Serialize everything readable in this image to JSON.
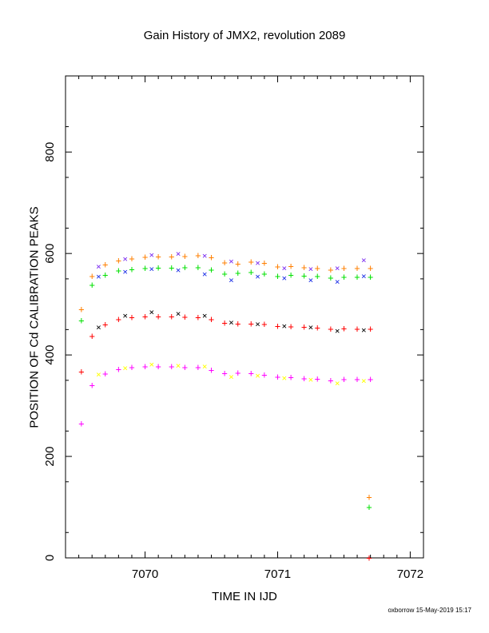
{
  "chart_data": {
    "type": "scatter",
    "title": "Gain History of JMX2, revolution 2089",
    "xlabel": "TIME IN IJD",
    "ylabel": "POSITION OF Cd CALIBRATION PEAKS",
    "xlim": [
      7069.4,
      7072.1
    ],
    "ylim": [
      0,
      950
    ],
    "xticks": [
      7070,
      7071,
      7072
    ],
    "yticks": [
      0,
      200,
      400,
      600,
      800
    ],
    "grid": false,
    "series": [
      {
        "color": "#7b2cf0",
        "marker": "x",
        "x": [
          7069.65,
          7069.85,
          7070.05,
          7070.25,
          7070.45,
          7070.65,
          7070.85,
          7071.05,
          7071.25,
          7071.45,
          7071.65
        ],
        "y": [
          575,
          590,
          598,
          600,
          596,
          585,
          582,
          572,
          570,
          572,
          588
        ]
      },
      {
        "color": "#1a2ee6",
        "marker": "x",
        "x": [
          7069.65,
          7069.85,
          7070.05,
          7070.25,
          7070.45,
          7070.65,
          7070.85,
          7071.05,
          7071.25,
          7071.45,
          7071.65
        ],
        "y": [
          555,
          565,
          570,
          568,
          560,
          548,
          555,
          552,
          548,
          545,
          556
        ]
      },
      {
        "color": "#ff7f00",
        "marker": "+",
        "x": [
          7069.52,
          7069.6,
          7069.7,
          7069.8,
          7069.9,
          7070.0,
          7070.1,
          7070.2,
          7070.3,
          7070.4,
          7070.5,
          7070.6,
          7070.7,
          7070.8,
          7070.9,
          7071.0,
          7071.1,
          7071.2,
          7071.3,
          7071.4,
          7071.5,
          7071.6,
          7071.7
        ],
        "y": [
          490,
          555,
          578,
          586,
          590,
          593,
          594,
          594,
          595,
          596,
          592,
          582,
          580,
          584,
          581,
          574,
          575,
          573,
          571,
          568,
          571,
          571,
          571
        ]
      },
      {
        "color": "#00e000",
        "marker": "+",
        "x": [
          7069.52,
          7069.6,
          7069.7,
          7069.8,
          7069.9,
          7070.0,
          7070.1,
          7070.2,
          7070.3,
          7070.4,
          7070.5,
          7070.6,
          7070.7,
          7070.8,
          7070.9,
          7071.0,
          7071.1,
          7071.2,
          7071.3,
          7071.4,
          7071.5,
          7071.6,
          7071.7
        ],
        "y": [
          468,
          538,
          558,
          566,
          569,
          571,
          572,
          572,
          573,
          573,
          568,
          560,
          562,
          563,
          560,
          555,
          558,
          556,
          555,
          552,
          554,
          554,
          554
        ]
      },
      {
        "color": "#000000",
        "marker": "x",
        "x": [
          7069.65,
          7069.85,
          7070.05,
          7070.25,
          7070.45,
          7070.65,
          7070.85,
          7071.05,
          7071.25,
          7071.45,
          7071.65
        ],
        "y": [
          455,
          478,
          485,
          482,
          478,
          465,
          462,
          458,
          455,
          448,
          450
        ]
      },
      {
        "color": "#ff0000",
        "marker": "+",
        "x": [
          7069.52,
          7069.6,
          7069.7,
          7069.8,
          7069.9,
          7070.0,
          7070.1,
          7070.2,
          7070.3,
          7070.4,
          7070.5,
          7070.6,
          7070.7,
          7070.8,
          7070.9,
          7071.0,
          7071.1,
          7071.2,
          7071.3,
          7071.4,
          7071.5,
          7071.6,
          7071.7
        ],
        "y": [
          367,
          437,
          460,
          470,
          474,
          476,
          476,
          476,
          475,
          474,
          470,
          463,
          462,
          462,
          461,
          457,
          456,
          455,
          454,
          451,
          452,
          451,
          451
        ]
      },
      {
        "color": "#ffff00",
        "marker": "x",
        "x": [
          7069.65,
          7069.85,
          7070.05,
          7070.25,
          7070.45,
          7070.65,
          7070.85,
          7071.05,
          7071.25,
          7071.45,
          7071.65
        ],
        "y": [
          362,
          375,
          382,
          380,
          378,
          358,
          360,
          355,
          352,
          345,
          350
        ]
      },
      {
        "color": "#ff00ff",
        "marker": "+",
        "x": [
          7069.52,
          7069.6,
          7069.7,
          7069.8,
          7069.9,
          7070.0,
          7070.1,
          7070.2,
          7070.3,
          7070.4,
          7070.5,
          7070.6,
          7070.7,
          7070.8,
          7070.9,
          7071.0,
          7071.1,
          7071.2,
          7071.3,
          7071.4,
          7071.5,
          7071.6,
          7071.7
        ],
        "y": [
          265,
          340,
          363,
          372,
          376,
          377,
          377,
          377,
          376,
          376,
          370,
          364,
          365,
          364,
          361,
          357,
          356,
          354,
          353,
          350,
          352,
          352,
          352
        ]
      },
      {
        "color": "#ff7f00",
        "marker": "+",
        "x": [
          7071.69
        ],
        "y": [
          120
        ]
      },
      {
        "color": "#00e000",
        "marker": "+",
        "x": [
          7071.69
        ],
        "y": [
          100
        ]
      },
      {
        "color": "#ff0000",
        "marker": "+",
        "x": [
          7071.69
        ],
        "y": [
          0
        ]
      }
    ]
  },
  "footer": "oxborrow 15-May-2019 15:17"
}
